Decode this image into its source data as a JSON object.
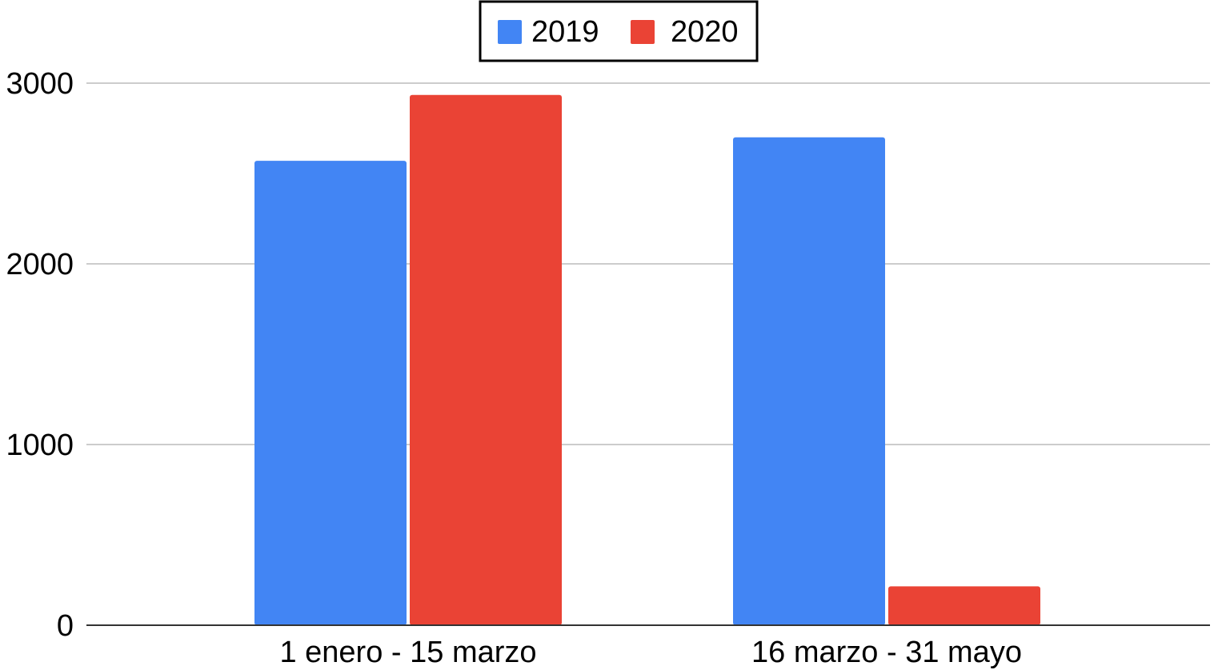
{
  "chart_data": {
    "type": "bar",
    "title": "",
    "xlabel": "",
    "ylabel": "",
    "categories": [
      "1 enero - 15 marzo",
      "16 marzo - 31 mayo"
    ],
    "series": [
      {
        "name": "2019",
        "color": "#4285F4",
        "values": [
          2570,
          2700
        ]
      },
      {
        "name": "2020",
        "color": "#EA4335",
        "values": [
          2935,
          215
        ]
      }
    ],
    "ylim": [
      0,
      3000
    ],
    "yticks": [
      0,
      1000,
      2000,
      3000
    ],
    "ytick_labels": [
      "0",
      "1000",
      "2000",
      "3000"
    ],
    "grid": true,
    "legend": {
      "placement": "top-center",
      "framed": true
    }
  }
}
